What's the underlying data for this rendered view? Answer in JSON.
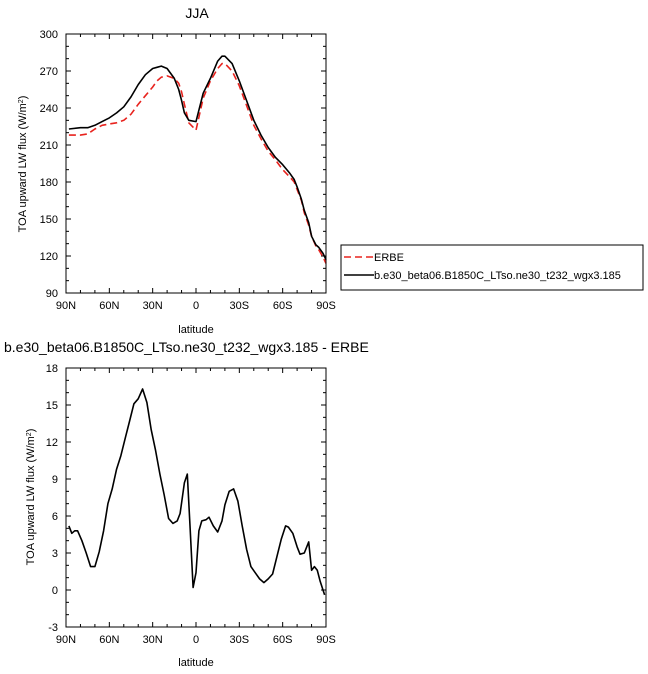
{
  "chart_data": [
    {
      "type": "line",
      "title": "JJA",
      "xlabel": "latitude",
      "ylabel": "TOA upward LW flux (W/m",
      "ylabel_sup": "2",
      "ylabel_end": ")",
      "xlim": [
        90,
        -90
      ],
      "ylim": [
        90,
        300
      ],
      "x_ticks": [
        90,
        60,
        30,
        0,
        -30,
        -60,
        -90
      ],
      "x_tick_labels": [
        "90N",
        "60N",
        "30N",
        "0",
        "30S",
        "60S",
        "90S"
      ],
      "y_ticks": [
        90,
        120,
        150,
        180,
        210,
        240,
        270,
        300
      ],
      "legend_position": "right-bottom-outside",
      "series": [
        {
          "name": "ERBE",
          "color": "#e8231e",
          "dash": "dashed",
          "x": [
            88,
            80,
            75,
            70,
            65,
            60,
            55,
            50,
            45,
            40,
            35,
            30,
            27,
            24,
            20,
            15,
            12,
            10,
            8,
            5,
            0,
            -5,
            -10,
            -15,
            -18,
            -20,
            -25,
            -30,
            -35,
            -40,
            -45,
            -50,
            -55,
            -60,
            -65,
            -68,
            -70,
            -73,
            -75,
            -78,
            -80,
            -83,
            -85,
            -88,
            -90
          ],
          "y": [
            218,
            218,
            219,
            223,
            226,
            227,
            228,
            230,
            235,
            243,
            250,
            257,
            262,
            265,
            266,
            264,
            260,
            253,
            243,
            228,
            222,
            248,
            262,
            272,
            276,
            276,
            270,
            258,
            242,
            226,
            215,
            205,
            198,
            190,
            184,
            180,
            174,
            165,
            155,
            145,
            136,
            128,
            125,
            119,
            114
          ]
        },
        {
          "name": "b.e30_beta06.B1850C_LTso.ne30_t232_wgx3.185",
          "color": "#000000",
          "dash": "solid",
          "x": [
            88,
            80,
            75,
            70,
            65,
            60,
            55,
            50,
            45,
            40,
            35,
            30,
            27,
            24,
            20,
            15,
            12,
            10,
            8,
            5,
            0,
            -5,
            -10,
            -15,
            -18,
            -20,
            -25,
            -30,
            -35,
            -40,
            -45,
            -50,
            -55,
            -60,
            -65,
            -68,
            -70,
            -73,
            -75,
            -78,
            -80,
            -83,
            -85,
            -88,
            -90
          ],
          "y": [
            223,
            224,
            224,
            226,
            229,
            232,
            236,
            241,
            249,
            259,
            267,
            272,
            273,
            274,
            272,
            264,
            255,
            246,
            236,
            230,
            229,
            252,
            264,
            278,
            282,
            282,
            276,
            262,
            246,
            230,
            218,
            208,
            200,
            194,
            187,
            182,
            176,
            166,
            157,
            147,
            136,
            129,
            127,
            122,
            117
          ]
        }
      ]
    },
    {
      "type": "line",
      "title": "b.e30_beta06.B1850C_LTso.ne30_t232_wgx3.185 - ERBE",
      "xlabel": "latitude",
      "ylabel": "TOA upward LW flux (W/m",
      "ylabel_sup": "2",
      "ylabel_end": ")",
      "xlim": [
        90,
        -90
      ],
      "ylim": [
        -3,
        18
      ],
      "x_ticks": [
        90,
        60,
        30,
        0,
        -30,
        -60,
        -90
      ],
      "x_tick_labels": [
        "90N",
        "60N",
        "30N",
        "0",
        "30S",
        "60S",
        "90S"
      ],
      "y_ticks": [
        -3,
        0,
        3,
        6,
        9,
        12,
        15,
        18
      ],
      "series": [
        {
          "color": "#000000",
          "dash": "solid",
          "x": [
            88,
            86,
            84,
            82,
            79,
            76,
            73,
            70,
            67,
            64,
            61,
            58,
            55,
            52,
            49,
            46,
            43,
            40,
            37,
            34,
            31,
            28,
            25,
            22,
            19,
            16,
            13,
            11,
            8,
            6,
            4,
            2,
            0,
            -2,
            -4,
            -7,
            -9,
            -12,
            -15,
            -18,
            -20,
            -23,
            -26,
            -29,
            -32,
            -35,
            -38,
            -41,
            -44,
            -47,
            -50,
            -53,
            -56,
            -59,
            -62,
            -64,
            -67,
            -70,
            -72,
            -75,
            -78,
            -80,
            -82,
            -84,
            -86,
            -89
          ],
          "y": [
            5.2,
            4.6,
            4.8,
            4.8,
            4.0,
            3.0,
            1.9,
            1.9,
            3.1,
            4.8,
            7.0,
            8.2,
            9.8,
            10.9,
            12.3,
            13.7,
            15.1,
            15.5,
            16.3,
            15.2,
            13.0,
            11.3,
            9.4,
            7.7,
            5.8,
            5.4,
            5.6,
            6.2,
            8.7,
            9.4,
            4.9,
            0.2,
            1.4,
            4.8,
            5.6,
            5.7,
            5.9,
            5.2,
            4.7,
            5.6,
            6.9,
            8.0,
            8.2,
            7.2,
            5.2,
            3.3,
            1.9,
            1.4,
            0.9,
            0.6,
            0.9,
            1.3,
            2.7,
            4.1,
            5.2,
            5.1,
            4.6,
            3.5,
            2.9,
            3.0,
            3.9,
            1.6,
            1.9,
            1.6,
            0.7,
            -0.4
          ]
        }
      ]
    }
  ]
}
